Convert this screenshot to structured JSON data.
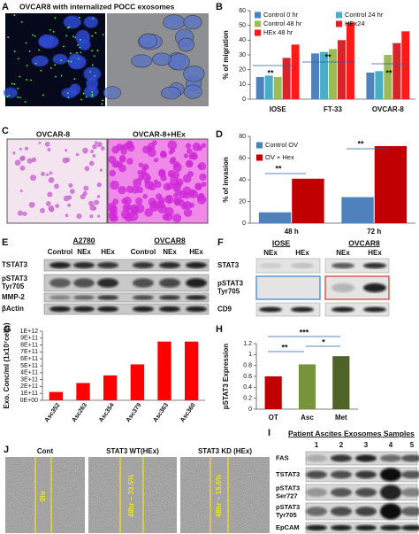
{
  "chart_data": [
    {
      "type": "bar",
      "label": "B",
      "ylabel": "% of migration",
      "categories": [
        "IOSE",
        "FT-33",
        "OVCAR-8"
      ],
      "series": [
        {
          "name": "Control 0 hr",
          "color": "#4f81bd",
          "values": [
            15,
            31,
            18
          ]
        },
        {
          "name": "Control 24 hr",
          "color": "#4bacc6",
          "values": [
            16,
            32,
            19
          ]
        },
        {
          "name": "Control 48 hr",
          "color": "#9bbb59",
          "values": [
            15,
            34,
            30
          ]
        },
        {
          "name": "HEx24",
          "color": "#d7262b",
          "values": [
            28,
            40,
            38
          ]
        },
        {
          "name": "HEx 48 hr",
          "color": "#ff1a1a",
          "values": [
            37,
            52,
            46
          ]
        }
      ],
      "ylim": [
        0,
        60
      ],
      "yticks": [
        0,
        10,
        20,
        30,
        40,
        50,
        60
      ],
      "annotations": [
        "**",
        "**",
        "**"
      ]
    },
    {
      "type": "bar",
      "label": "D",
      "ylabel": "% of invasion",
      "categories": [
        "48 h",
        "72 h"
      ],
      "series": [
        {
          "name": "Control OV",
          "color": "#4f81bd",
          "values": [
            10,
            24
          ]
        },
        {
          "name": "OV + Hex",
          "color": "#c00000",
          "values": [
            41,
            71
          ]
        }
      ],
      "ylim": [
        0,
        80
      ],
      "yticks": [
        0,
        20,
        40,
        60,
        80
      ],
      "annotations": [
        "**",
        "**"
      ]
    },
    {
      "type": "bar",
      "label": "G",
      "ylabel": "Exo. Conc/ml (1x10⁷cells)",
      "categories": [
        "Asc352",
        "Asc263",
        "Asc354",
        "Asc379",
        "Asc363",
        "Asc360"
      ],
      "values": [
        120000000000,
        250000000000,
        360000000000,
        520000000000,
        850000000000,
        850000000000
      ],
      "color": "#ff0000",
      "ylim": [
        0,
        1000000000000
      ],
      "yticks": [
        {
          "value": 0,
          "label": "0E+00"
        },
        {
          "value": 100000000000,
          "label": "1E+11"
        },
        {
          "value": 200000000000,
          "label": "2E+11"
        },
        {
          "value": 300000000000,
          "label": "3E+11"
        },
        {
          "value": 400000000000,
          "label": "4E+11"
        },
        {
          "value": 500000000000,
          "label": "5E+11"
        },
        {
          "value": 600000000000,
          "label": "6E+11"
        },
        {
          "value": 700000000000,
          "label": "7E+11"
        },
        {
          "value": 800000000000,
          "label": "8E+11"
        },
        {
          "value": 900000000000,
          "label": "9E+11"
        },
        {
          "value": 1000000000000,
          "label": "1E+12"
        }
      ],
      "annotations": []
    },
    {
      "type": "bar",
      "label": "H",
      "ylabel": "pSTAT3 Expression",
      "categories": [
        "OT",
        "Asc",
        "Met"
      ],
      "values": [
        0.6,
        0.82,
        0.97
      ],
      "colors": [
        "#c00000",
        "#77933c",
        "#4f6228"
      ],
      "ylim": [
        0,
        1.2
      ],
      "yticks": [
        0,
        0.2,
        0.4,
        0.6,
        0.8,
        1,
        1.2
      ],
      "annotations": [
        "***",
        "**",
        "*"
      ]
    }
  ],
  "panel_a": {
    "label": "A",
    "title": "OVCAR8 with internalized POCC exosomes"
  },
  "panel_c": {
    "label": "C",
    "images": [
      "OVCAR-8",
      "OVCAR-8+HEx"
    ]
  },
  "panel_e": {
    "label": "E",
    "groups": [
      "A2780",
      "OVCAR8"
    ],
    "lanes": [
      "Control",
      "NEx",
      "HEx",
      "Control",
      "NEx",
      "HEx"
    ],
    "rows": [
      [
        "TSTAT3"
      ],
      [
        "pSTAT3",
        "Tyr705"
      ],
      [
        "MMP-2"
      ],
      [
        "βActin"
      ]
    ]
  },
  "panel_f": {
    "label": "F",
    "groups": [
      "IOSE",
      "OVCAR8"
    ],
    "lanes": [
      "NEx",
      "HEx",
      "NEx",
      "HEx"
    ],
    "rows": [
      [
        "STAT3"
      ],
      [
        "pSTAT3",
        "Tyr705"
      ],
      [
        "CD9"
      ]
    ]
  },
  "panel_i": {
    "label": "I",
    "title": "Patient Ascites Exosomes Samples",
    "lanes": [
      "1",
      "2",
      "3",
      "4",
      "5"
    ],
    "rows": [
      [
        "FAS"
      ],
      [
        "TSTAT3"
      ],
      [
        "pSTAT3",
        "Ser727"
      ],
      [
        "pSTAT3",
        "Tyr705"
      ],
      [
        "EpCAM"
      ]
    ]
  },
  "panel_j": {
    "label": "J",
    "images": [
      "Cont",
      "STAT3 WT(HEx)",
      "STAT3 KD (HEx)"
    ],
    "gaps": [
      "0hr",
      "48hr – 33.5%",
      "48hr – 15.6%"
    ]
  }
}
